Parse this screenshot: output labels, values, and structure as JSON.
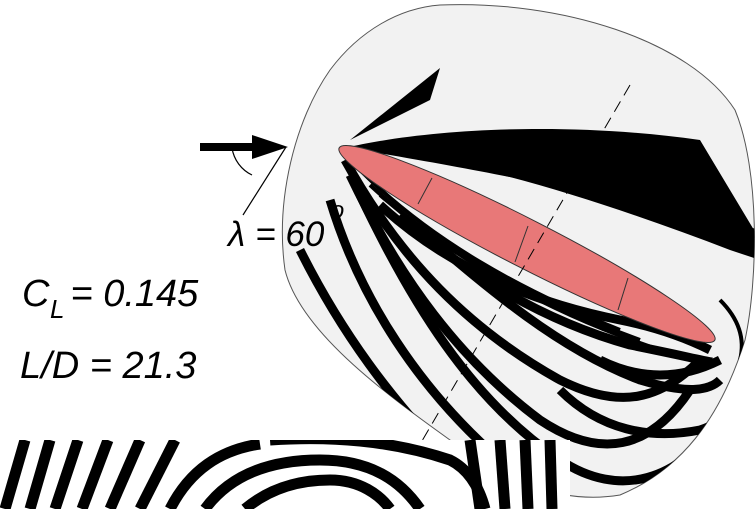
{
  "annotations": {
    "sweep": {
      "symbol": "λ",
      "equals": "= 60",
      "unit": "o"
    },
    "lift": {
      "symbol": "C",
      "subscript": "L",
      "equals": "= 0.145"
    },
    "ratio": {
      "text": "L/D = 21.3"
    }
  }
}
